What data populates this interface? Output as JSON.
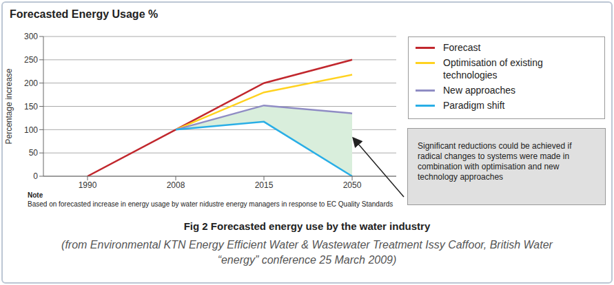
{
  "chart_data": {
    "type": "line",
    "title": "Forecasted Energy Usage %",
    "y_label": "Percentage increase",
    "categories": [
      "1990",
      "2008",
      "2015",
      "2050"
    ],
    "series": [
      {
        "name": "Forecast",
        "color": "#c1272d",
        "values": [
          0,
          100,
          200,
          250
        ]
      },
      {
        "name": "Optimisation of existing technologies",
        "color": "#ffd21f",
        "values": [
          null,
          100,
          180,
          218
        ]
      },
      {
        "name": "New approaches",
        "color": "#8f8cc4",
        "values": [
          null,
          100,
          152,
          135
        ]
      },
      {
        "name": "Paradigm shift",
        "color": "#29aee6",
        "values": [
          null,
          100,
          117,
          0
        ]
      }
    ],
    "ylim": [
      0,
      300
    ],
    "yticks": [
      0,
      50,
      100,
      150,
      200,
      250,
      300
    ],
    "grid": true,
    "legend": "right",
    "annotation": {
      "text": "Significant reductions could be achieved if radical changes to systems were made in combination with optimisation and new technology approaches",
      "between": [
        "New approaches",
        "Paradigm shift"
      ]
    },
    "note_title": "Note",
    "note": "Based on forecasted increase in energy usage by water nidustre energy managers in response to EC Quality Standards",
    "caption": "Fig 2 Forecasted energy use by the water industry",
    "source": [
      "(from Environmental KTN Energy Efficient Water & Wastewater Treatment Issy Caffoor, British Water",
      "“energy” conference 25 March 2009)"
    ]
  }
}
